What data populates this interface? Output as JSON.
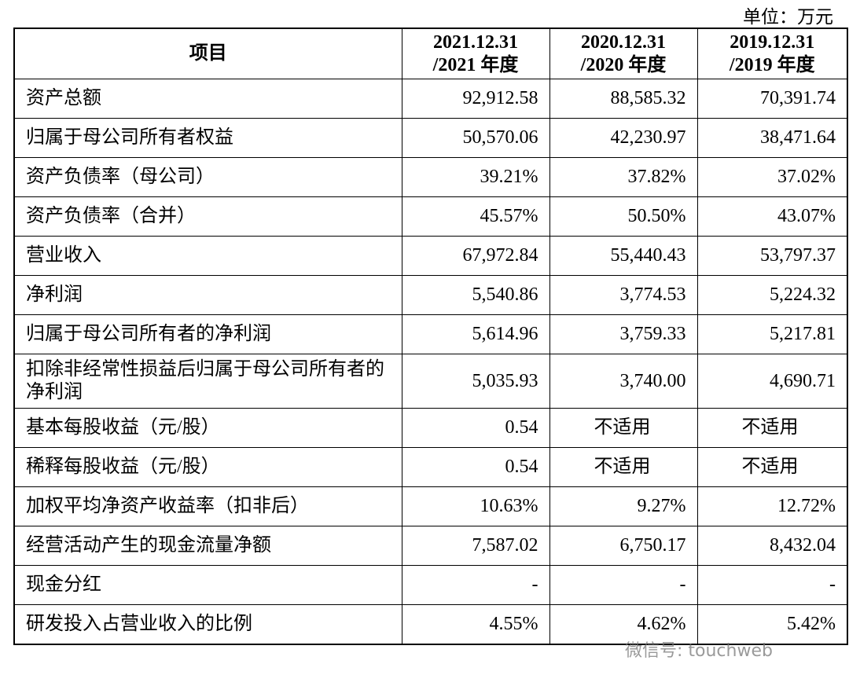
{
  "unit": "单位：万元",
  "table": {
    "header": [
      "项目",
      "2021.12.31\n/2021 年度",
      "2020.12.31\n/2020 年度",
      "2019.12.31\n/2019 年度"
    ],
    "rows": [
      [
        "资产总额",
        "92,912.58",
        "88,585.32",
        "70,391.74"
      ],
      [
        "归属于母公司所有者权益",
        "50,570.06",
        "42,230.97",
        "38,471.64"
      ],
      [
        "资产负债率（母公司）",
        "39.21%",
        "37.82%",
        "37.02%"
      ],
      [
        "资产负债率（合并）",
        "45.57%",
        "50.50%",
        "43.07%"
      ],
      [
        "营业收入",
        "67,972.84",
        "55,440.43",
        "53,797.37"
      ],
      [
        "净利润",
        "5,540.86",
        "3,774.53",
        "5,224.32"
      ],
      [
        "归属于母公司所有者的净利润",
        "5,614.96",
        "3,759.33",
        "5,217.81"
      ],
      [
        "扣除非经常性损益后归属于母公司所有者的净利润",
        "5,035.93",
        "3,740.00",
        "4,690.71"
      ],
      [
        "基本每股收益（元/股）",
        "0.54",
        "不适用",
        "不适用"
      ],
      [
        "稀释每股收益（元/股）",
        "0.54",
        "不适用",
        "不适用"
      ],
      [
        "加权平均净资产收益率（扣非后）",
        "10.63%",
        "9.27%",
        "12.72%"
      ],
      [
        "经营活动产生的现金流量净额",
        "7,587.02",
        "6,750.17",
        "8,432.04"
      ],
      [
        "现金分红",
        "-",
        "-",
        "-"
      ],
      [
        "研发投入占营业收入的比例",
        "4.55%",
        "4.62%",
        "5.42%"
      ]
    ]
  },
  "watermark": "微信号: touchweb"
}
